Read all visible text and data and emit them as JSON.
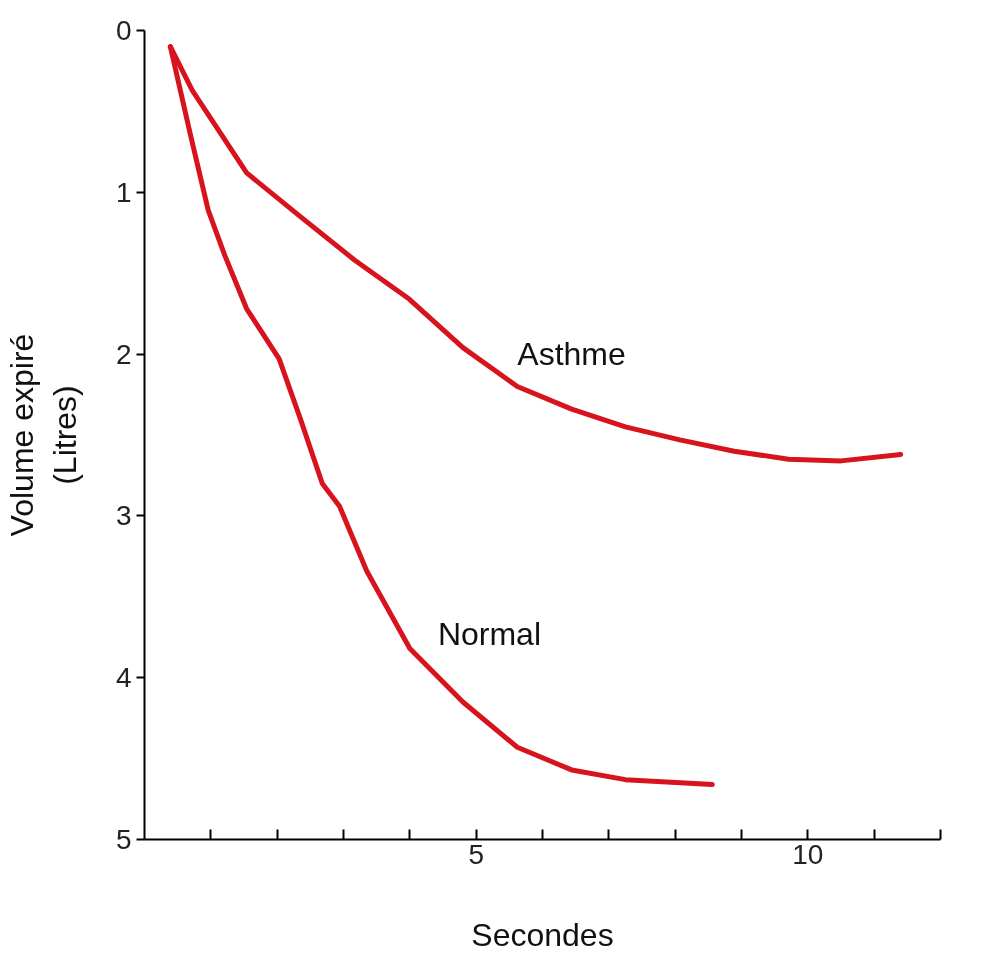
{
  "chart_data": {
    "type": "line",
    "xlabel": "Secondes",
    "ylabel": "Volume expiré\n(Litres)",
    "xlim": [
      0,
      12
    ],
    "ylim": [
      5,
      0
    ],
    "xticks": [
      {
        "value": 1,
        "label": null
      },
      {
        "value": 2,
        "label": null
      },
      {
        "value": 3,
        "label": null
      },
      {
        "value": 4,
        "label": null
      },
      5,
      {
        "value": 6,
        "label": null
      },
      {
        "value": 7,
        "label": null
      },
      {
        "value": 8,
        "label": null
      },
      {
        "value": 9,
        "label": null
      },
      10,
      {
        "value": 11,
        "label": null
      },
      {
        "value": 12,
        "label": null
      }
    ],
    "yticks": [
      0,
      1,
      2,
      3,
      4,
      5
    ],
    "grid": false,
    "marker": "none",
    "line_style": "solid",
    "series": [
      {
        "name": "Asthme",
        "color": "#d7141e",
        "x": [
          0.39,
          0.72,
          1.54,
          2.35,
          3.17,
          3.99,
          4.8,
          5.62,
          6.44,
          7.25,
          8.07,
          8.89,
          9.71,
          10.5,
          11.4
        ],
        "values": [
          0.1,
          0.37,
          0.88,
          1.15,
          1.42,
          1.66,
          1.96,
          2.2,
          2.34,
          2.45,
          2.53,
          2.6,
          2.65,
          2.66,
          2.62
        ]
      },
      {
        "name": "Normal",
        "color": "#d7141e",
        "x": [
          0.39,
          0.69,
          0.96,
          1.21,
          1.54,
          2.03,
          2.35,
          2.68,
          2.94,
          3.35,
          4.0,
          4.8,
          5.62,
          6.44,
          7.25,
          8.56
        ],
        "values": [
          0.1,
          0.64,
          1.11,
          1.39,
          1.72,
          2.03,
          2.4,
          2.8,
          2.94,
          3.34,
          3.82,
          4.15,
          4.43,
          4.57,
          4.63,
          4.66
        ]
      }
    ]
  }
}
